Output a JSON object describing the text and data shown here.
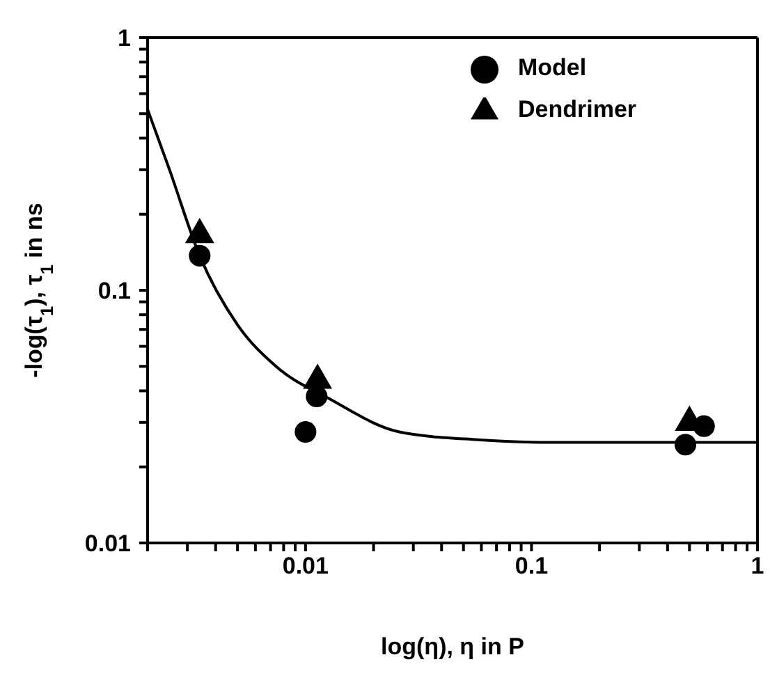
{
  "chart_data": {
    "type": "scatter",
    "xlabel": "log(η), η in P",
    "ylabel": "-log(τ$_{1}$), τ$_{1}$ in ns",
    "log": "xy",
    "legend": "top right",
    "xlim": [
      0.002,
      1
    ],
    "ylim": [
      0.01,
      1
    ],
    "xticks": [
      {
        "value": 0.002,
        "label": null
      },
      {
        "value": 0.003,
        "label": null
      },
      {
        "value": 0.004,
        "label": null
      },
      {
        "value": 0.005,
        "label": null
      },
      {
        "value": 0.006,
        "label": null
      },
      {
        "value": 0.007,
        "label": null
      },
      {
        "value": 0.008,
        "label": null
      },
      {
        "value": 0.009,
        "label": null
      },
      0.01,
      {
        "value": 0.02,
        "label": null
      },
      {
        "value": 0.03,
        "label": null
      },
      {
        "value": 0.04,
        "label": null
      },
      {
        "value": 0.05,
        "label": null
      },
      {
        "value": 0.06,
        "label": null
      },
      {
        "value": 0.07,
        "label": null
      },
      {
        "value": 0.08,
        "label": null
      },
      {
        "value": 0.09,
        "label": null
      },
      0.1,
      {
        "value": 0.2,
        "label": null
      },
      {
        "value": 0.3,
        "label": null
      },
      {
        "value": 0.4,
        "label": null
      },
      {
        "value": 0.5,
        "label": null
      },
      {
        "value": 0.6,
        "label": null
      },
      {
        "value": 0.7,
        "label": null
      },
      {
        "value": 0.8,
        "label": null
      },
      {
        "value": 0.9,
        "label": null
      },
      1
    ],
    "yticks": [
      0.01,
      {
        "value": 0.02,
        "label": null
      },
      {
        "value": 0.03,
        "label": null
      },
      {
        "value": 0.04,
        "label": null
      },
      {
        "value": 0.05,
        "label": null
      },
      {
        "value": 0.06,
        "label": null
      },
      {
        "value": 0.07,
        "label": null
      },
      {
        "value": 0.08,
        "label": null
      },
      {
        "value": 0.09,
        "label": null
      },
      0.1,
      {
        "value": 0.2,
        "label": null
      },
      {
        "value": 0.3,
        "label": null
      },
      {
        "value": 0.4,
        "label": null
      },
      {
        "value": 0.5,
        "label": null
      },
      {
        "value": 0.6,
        "label": null
      },
      {
        "value": 0.7,
        "label": null
      },
      {
        "value": 0.8,
        "label": null
      },
      {
        "value": 0.9,
        "label": null
      },
      1
    ],
    "series": [
      {
        "name": "Model",
        "color": "#000000",
        "marker": "circle",
        "x": [
          0.0034,
          0.01,
          0.0112,
          0.48,
          0.58
        ],
        "values": [
          0.137,
          0.0275,
          0.038,
          0.0245,
          0.029
        ]
      },
      {
        "name": "Dendrimer",
        "color": "#000000",
        "marker": "triangle",
        "x": [
          0.0034,
          0.0113,
          0.5
        ],
        "values": [
          0.166,
          0.044,
          0.03
        ]
      },
      {
        "type": "line",
        "color": "#000000",
        "marker": "none",
        "line_style": "solid",
        "x": [
          0.002,
          0.0025,
          0.0034,
          0.005,
          0.0074,
          0.0129,
          0.026,
          0.058,
          0.12,
          0.3,
          1
        ],
        "values": [
          0.52,
          0.3,
          0.137,
          0.073,
          0.05,
          0.037,
          0.0275,
          0.0256,
          0.025,
          0.025,
          0.025
        ]
      }
    ]
  }
}
